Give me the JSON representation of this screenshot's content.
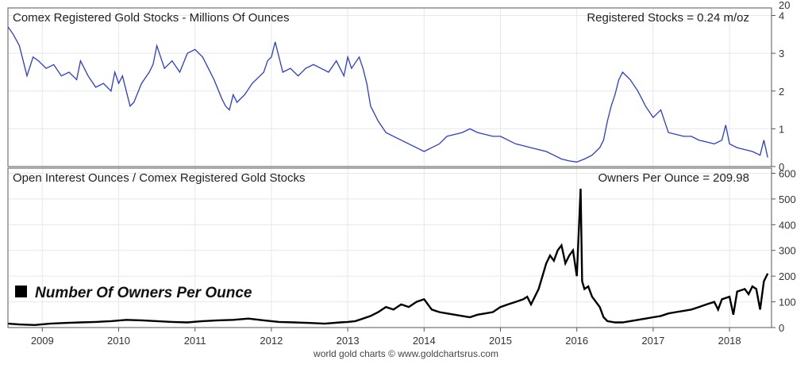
{
  "chart_data": [
    {
      "type": "line",
      "title": "Comex Registered Gold Stocks - Millions Of Ounces",
      "annotation": "Registered Stocks = 0.24 m/oz",
      "ylim": [
        0,
        4.2
      ],
      "y_ticks": [
        "0",
        "1",
        "2",
        "3",
        "4"
      ],
      "y_ticks_top_clipped": "20",
      "grid": true,
      "series": [
        {
          "color": "#2b3bd6",
          "x": [
            2008.55,
            2008.62,
            2008.7,
            2008.75,
            2008.8,
            2008.88,
            2008.95,
            2009.05,
            2009.15,
            2009.25,
            2009.35,
            2009.45,
            2009.5,
            2009.6,
            2009.7,
            2009.8,
            2009.9,
            2009.95,
            2010.0,
            2010.05,
            2010.1,
            2010.15,
            2010.2,
            2010.3,
            2010.4,
            2010.45,
            2010.5,
            2010.55,
            2010.6,
            2010.7,
            2010.8,
            2010.9,
            2011.0,
            2011.1,
            2011.15,
            2011.25,
            2011.35,
            2011.4,
            2011.45,
            2011.5,
            2011.55,
            2011.65,
            2011.75,
            2011.85,
            2011.9,
            2011.95,
            2012.0,
            2012.05,
            2012.15,
            2012.25,
            2012.35,
            2012.45,
            2012.55,
            2012.65,
            2012.75,
            2012.85,
            2012.95,
            2013.0,
            2013.05,
            2013.15,
            2013.2,
            2013.25,
            2013.3,
            2013.4,
            2013.5,
            2013.6,
            2013.7,
            2013.8,
            2013.9,
            2014.0,
            2014.1,
            2014.2,
            2014.3,
            2014.4,
            2014.5,
            2014.6,
            2014.7,
            2014.8,
            2014.9,
            2015.0,
            2015.1,
            2015.2,
            2015.3,
            2015.4,
            2015.5,
            2015.6,
            2015.7,
            2015.8,
            2015.9,
            2016.0,
            2016.1,
            2016.2,
            2016.3,
            2016.35,
            2016.4,
            2016.45,
            2016.5,
            2016.55,
            2016.6,
            2016.7,
            2016.8,
            2016.85,
            2016.9,
            2017.0,
            2017.1,
            2017.15,
            2017.2,
            2017.3,
            2017.4,
            2017.5,
            2017.6,
            2017.7,
            2017.8,
            2017.9,
            2017.95,
            2018.0,
            2018.1,
            2018.2,
            2018.3,
            2018.35,
            2018.4,
            2018.45,
            2018.5
          ],
          "y": [
            3.7,
            3.5,
            3.2,
            2.8,
            2.4,
            2.9,
            2.8,
            2.6,
            2.7,
            2.4,
            2.5,
            2.3,
            2.8,
            2.4,
            2.1,
            2.2,
            2.0,
            2.5,
            2.2,
            2.4,
            2.0,
            1.6,
            1.7,
            2.2,
            2.5,
            2.7,
            3.2,
            2.9,
            2.6,
            2.8,
            2.5,
            3.0,
            3.1,
            2.9,
            2.7,
            2.3,
            1.8,
            1.6,
            1.5,
            1.9,
            1.7,
            1.9,
            2.2,
            2.4,
            2.5,
            2.8,
            2.9,
            3.3,
            2.5,
            2.6,
            2.4,
            2.6,
            2.7,
            2.6,
            2.5,
            2.8,
            2.4,
            2.9,
            2.6,
            2.9,
            2.6,
            2.2,
            1.6,
            1.2,
            0.9,
            0.8,
            0.7,
            0.6,
            0.5,
            0.4,
            0.5,
            0.6,
            0.8,
            0.85,
            0.9,
            1.0,
            0.9,
            0.85,
            0.8,
            0.8,
            0.7,
            0.6,
            0.55,
            0.5,
            0.45,
            0.4,
            0.3,
            0.2,
            0.15,
            0.12,
            0.2,
            0.3,
            0.5,
            0.7,
            1.2,
            1.6,
            1.9,
            2.3,
            2.5,
            2.3,
            2.0,
            1.8,
            1.6,
            1.3,
            1.5,
            1.2,
            0.9,
            0.85,
            0.8,
            0.8,
            0.7,
            0.65,
            0.6,
            0.7,
            1.1,
            0.6,
            0.5,
            0.45,
            0.4,
            0.35,
            0.3,
            0.7,
            0.24
          ]
        }
      ]
    },
    {
      "type": "line",
      "title": "Open Interest Ounces / Comex Registered Gold Stocks",
      "annotation": "Owners Per Ounce = 209.98",
      "legend": "Number Of Owners Per Ounce",
      "ylim": [
        0,
        620
      ],
      "y_ticks": [
        "0",
        "100",
        "200",
        "300",
        "400",
        "500",
        "600"
      ],
      "x_ticks": [
        "2009",
        "2010",
        "2011",
        "2012",
        "2013",
        "2014",
        "2015",
        "2016",
        "2017",
        "2018"
      ],
      "xlim": [
        2008.55,
        2018.55
      ],
      "grid": true,
      "series": [
        {
          "color": "#000000",
          "x": [
            2008.55,
            2008.7,
            2008.9,
            2009.1,
            2009.3,
            2009.5,
            2009.7,
            2009.9,
            2010.1,
            2010.3,
            2010.5,
            2010.7,
            2010.9,
            2011.1,
            2011.3,
            2011.5,
            2011.7,
            2011.9,
            2012.1,
            2012.3,
            2012.5,
            2012.7,
            2012.9,
            2013.0,
            2013.1,
            2013.2,
            2013.3,
            2013.4,
            2013.5,
            2013.6,
            2013.7,
            2013.8,
            2013.9,
            2014.0,
            2014.05,
            2014.1,
            2014.2,
            2014.3,
            2014.4,
            2014.5,
            2014.6,
            2014.7,
            2014.8,
            2014.9,
            2015.0,
            2015.1,
            2015.2,
            2015.3,
            2015.35,
            2015.4,
            2015.5,
            2015.6,
            2015.65,
            2015.7,
            2015.75,
            2015.8,
            2015.85,
            2015.9,
            2015.95,
            2016.0,
            2016.05,
            2016.07,
            2016.1,
            2016.15,
            2016.2,
            2016.3,
            2016.35,
            2016.4,
            2016.5,
            2016.6,
            2016.7,
            2016.8,
            2016.9,
            2017.0,
            2017.1,
            2017.2,
            2017.3,
            2017.4,
            2017.5,
            2017.6,
            2017.7,
            2017.8,
            2017.85,
            2017.9,
            2018.0,
            2018.05,
            2018.1,
            2018.2,
            2018.25,
            2018.3,
            2018.35,
            2018.4,
            2018.45,
            2018.5
          ],
          "y": [
            15,
            12,
            10,
            15,
            18,
            20,
            22,
            25,
            30,
            28,
            25,
            22,
            20,
            25,
            28,
            30,
            35,
            28,
            22,
            20,
            18,
            15,
            20,
            22,
            25,
            35,
            45,
            60,
            80,
            70,
            90,
            80,
            100,
            110,
            90,
            70,
            60,
            55,
            50,
            45,
            40,
            50,
            55,
            60,
            80,
            90,
            100,
            110,
            120,
            90,
            150,
            250,
            280,
            260,
            300,
            320,
            250,
            280,
            300,
            200,
            540,
            180,
            150,
            160,
            120,
            80,
            40,
            25,
            20,
            20,
            25,
            30,
            35,
            40,
            45,
            55,
            60,
            65,
            70,
            80,
            90,
            100,
            70,
            110,
            120,
            50,
            140,
            150,
            130,
            160,
            150,
            70,
            180,
            210
          ]
        }
      ]
    }
  ],
  "credit": "world gold charts © www.goldchartsrus.com"
}
